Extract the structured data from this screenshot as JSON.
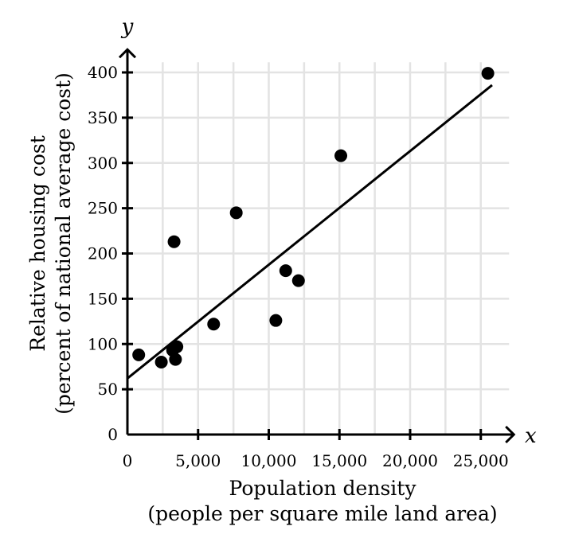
{
  "chart_data": {
    "type": "scatter",
    "x_axis": {
      "letter": "x",
      "label_line1": "Population density",
      "label_line2": "(people per square mile land area)",
      "ticks": [
        0,
        5000,
        10000,
        15000,
        20000,
        25000
      ],
      "tick_labels": [
        "0",
        "5,000",
        "10,000",
        "15,000",
        "20,000",
        "25,000"
      ],
      "range": [
        0,
        27000
      ]
    },
    "y_axis": {
      "letter": "y",
      "label_line1": "Relative housing cost",
      "label_line2": "(percent of national average cost)",
      "ticks": [
        0,
        50,
        100,
        150,
        200,
        250,
        300,
        350,
        400
      ],
      "tick_labels": [
        "0",
        "50",
        "100",
        "150",
        "200",
        "250",
        "300",
        "350",
        "400"
      ],
      "range": [
        0,
        420
      ]
    },
    "grid": true,
    "points": [
      {
        "x": 800,
        "y": 88
      },
      {
        "x": 2400,
        "y": 80
      },
      {
        "x": 3200,
        "y": 93
      },
      {
        "x": 3400,
        "y": 83
      },
      {
        "x": 3500,
        "y": 97
      },
      {
        "x": 3300,
        "y": 213
      },
      {
        "x": 6100,
        "y": 122
      },
      {
        "x": 7700,
        "y": 245
      },
      {
        "x": 10500,
        "y": 126
      },
      {
        "x": 11200,
        "y": 181
      },
      {
        "x": 12100,
        "y": 170
      },
      {
        "x": 15100,
        "y": 308
      },
      {
        "x": 25500,
        "y": 399
      }
    ],
    "trend_line": {
      "x1": 0,
      "y1": 62,
      "x2": 25800,
      "y2": 386
    },
    "colors": {
      "points": "#000000",
      "grid": "#e3e3e3",
      "axes": "#000000"
    }
  }
}
